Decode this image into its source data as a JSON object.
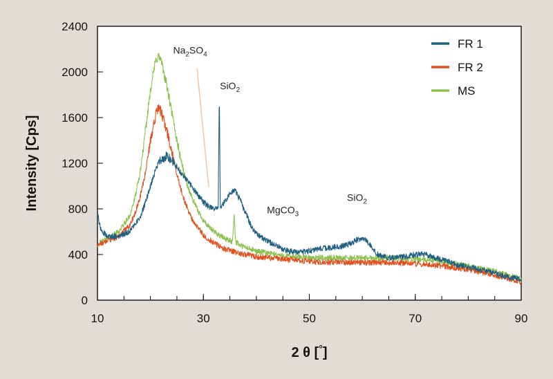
{
  "chart_data": {
    "type": "line",
    "xlabel_main": "2 θ [",
    "xlabel_unit": "°",
    "xlabel_end": "]",
    "ylabel": "Intensity [Cps]",
    "xlim": [
      10,
      90
    ],
    "ylim": [
      0,
      2400
    ],
    "x_ticks": [
      10,
      30,
      50,
      70,
      90
    ],
    "y_ticks": [
      0,
      400,
      800,
      1200,
      1600,
      2000,
      2400
    ],
    "grid": false,
    "legend_position": "top-right",
    "series": [
      {
        "name": "FR 1",
        "color": "#1f5f80",
        "x": [
          10,
          10.5,
          11,
          12,
          14,
          16,
          18,
          19,
          20,
          21,
          22,
          23,
          24,
          25,
          26,
          27,
          28,
          29,
          30,
          31,
          32,
          32.8,
          33,
          33.2,
          34,
          35,
          36,
          37,
          38,
          39,
          40,
          42,
          44,
          46,
          48,
          50,
          52,
          54,
          56,
          58,
          59,
          60,
          61,
          62,
          63,
          65,
          68,
          70,
          72,
          74,
          76,
          78,
          80,
          82,
          84,
          86,
          88,
          90
        ],
        "y": [
          760,
          640,
          590,
          560,
          560,
          600,
          720,
          850,
          1000,
          1150,
          1240,
          1260,
          1230,
          1170,
          1100,
          1050,
          980,
          920,
          860,
          820,
          800,
          820,
          1820,
          800,
          860,
          940,
          960,
          870,
          760,
          650,
          580,
          520,
          470,
          430,
          420,
          430,
          450,
          460,
          470,
          500,
          530,
          540,
          510,
          450,
          400,
          370,
          380,
          400,
          400,
          370,
          340,
          310,
          290,
          270,
          250,
          220,
          200,
          180
        ]
      },
      {
        "name": "FR 2",
        "color": "#e0501e",
        "x": [
          10,
          12,
          14,
          16,
          17,
          18,
          19,
          20,
          21,
          21.5,
          22,
          23,
          24,
          25,
          26,
          27,
          28,
          29,
          30,
          32,
          34,
          36,
          38,
          40,
          45,
          50,
          55,
          60,
          65,
          70,
          75,
          80,
          85,
          90
        ],
        "y": [
          480,
          520,
          560,
          650,
          750,
          900,
          1100,
          1400,
          1620,
          1680,
          1650,
          1500,
          1300,
          1100,
          930,
          800,
          700,
          630,
          570,
          500,
          450,
          420,
          400,
          380,
          360,
          340,
          330,
          330,
          330,
          320,
          300,
          270,
          220,
          160
        ]
      },
      {
        "name": "MS",
        "color": "#8cc04e",
        "x": [
          10,
          12,
          14,
          16,
          17,
          18,
          19,
          20,
          21,
          21.5,
          22,
          23,
          24,
          25,
          26,
          27,
          28,
          29,
          30,
          31,
          32,
          34,
          35.5,
          35.8,
          36.1,
          37,
          38,
          40,
          45,
          50,
          55,
          60,
          65,
          70,
          75,
          80,
          85,
          90
        ],
        "y": [
          490,
          540,
          600,
          730,
          880,
          1100,
          1450,
          1850,
          2100,
          2140,
          2100,
          1900,
          1650,
          1400,
          1180,
          1000,
          880,
          780,
          700,
          640,
          600,
          540,
          510,
          760,
          510,
          480,
          460,
          430,
          390,
          370,
          370,
          370,
          370,
          360,
          340,
          300,
          250,
          190
        ]
      }
    ],
    "annotations": [
      {
        "main": "Na",
        "sub1": "2",
        "mid": "SO",
        "sub2": "4",
        "x": 27.5,
        "y": 2160
      },
      {
        "main": "SiO",
        "sub1": "2",
        "mid": "",
        "sub2": "",
        "x": 35,
        "y": 1850
      },
      {
        "main": "MgCO",
        "sub1": "3",
        "mid": "",
        "sub2": "",
        "x": 45,
        "y": 760
      },
      {
        "main": "SiO",
        "sub1": "2",
        "mid": "",
        "sub2": "",
        "x": 59,
        "y": 870
      }
    ],
    "pointer_line": {
      "color": "#f2c8a8",
      "from": [
        28.8,
        2030
      ],
      "to": [
        31.0,
        990
      ]
    }
  }
}
